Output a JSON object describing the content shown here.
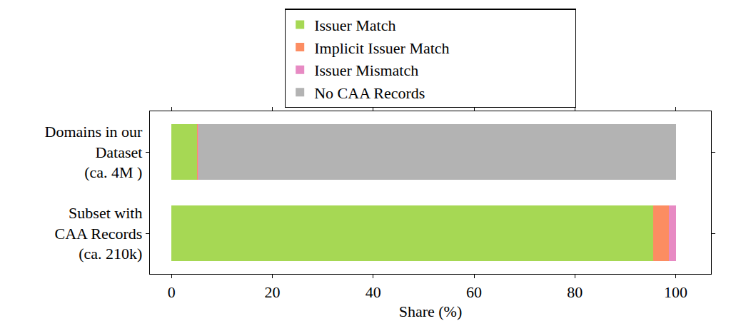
{
  "chart_data": {
    "type": "bar",
    "orientation": "horizontal",
    "stacked": true,
    "categories": [
      "Domains in our\nDataset\n(ca. 4M )",
      "Subset with\nCAA Records\n(ca. 210k)"
    ],
    "series": [
      {
        "name": "Issuer Match",
        "color": "#a6d854",
        "values": [
          5.0,
          95.6
        ]
      },
      {
        "name": "Implicit Issuer Match",
        "color": "#fc8d62",
        "values": [
          0.2,
          3.1
        ]
      },
      {
        "name": "Issuer Mismatch",
        "color": "#e78ac3",
        "values": [
          0.1,
          1.3
        ]
      },
      {
        "name": "No CAA Records",
        "color": "#b3b3b3",
        "values": [
          94.7,
          0
        ]
      }
    ],
    "x_label": "Share (%)",
    "xlim": [
      -4.3,
      107
    ],
    "xticks": [
      0,
      20,
      40,
      60,
      80,
      100
    ],
    "grid": false,
    "legend": "top"
  }
}
